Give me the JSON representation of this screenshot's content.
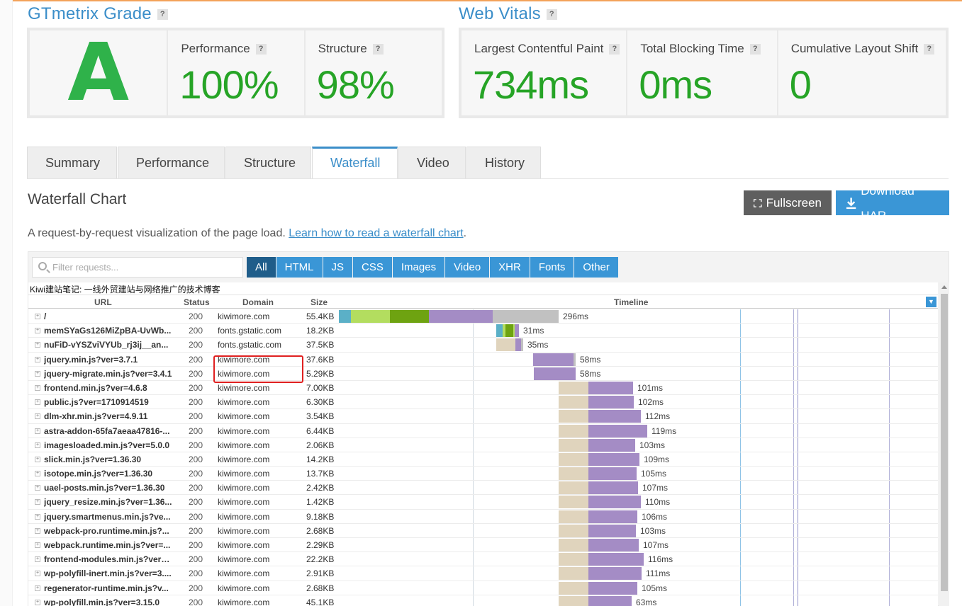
{
  "grade": {
    "title": "GTmetrix Grade",
    "help": "?",
    "letter": "A",
    "performance_label": "Performance",
    "performance_value": "100%",
    "structure_label": "Structure",
    "structure_value": "98%"
  },
  "vitals": {
    "title": "Web Vitals",
    "help": "?",
    "lcp_label": "Largest Contentful Paint",
    "lcp_value": "734ms",
    "tbt_label": "Total Blocking Time",
    "tbt_value": "0ms",
    "cls_label": "Cumulative Layout Shift",
    "cls_value": "0"
  },
  "tabs": [
    "Summary",
    "Performance",
    "Structure",
    "Waterfall",
    "Video",
    "History"
  ],
  "active_tab": "Waterfall",
  "waterfall": {
    "title": "Waterfall Chart",
    "fullscreen_label": "Fullscreen",
    "download_label": "Download HAR",
    "description": "A request-by-request visualization of the page load.",
    "learn_link": "Learn how to read a waterfall chart",
    "period": ".",
    "filter_placeholder": "Filter requests...",
    "filters": [
      "All",
      "HTML",
      "JS",
      "CSS",
      "Images",
      "Video",
      "XHR",
      "Fonts",
      "Other"
    ],
    "active_filter": "All",
    "site_title": "Kiwi建站笔记: 一线外贸建站与网络推广的技术博客",
    "columns": {
      "url": "URL",
      "status": "Status",
      "domain": "Domain",
      "size": "Size",
      "timeline": "Timeline"
    },
    "dropdown_icon": "chevron-down-icon"
  },
  "colors": {
    "accent": "#3b8ec9",
    "grade_green": "#2fb24a",
    "value_green": "#26a426",
    "blocking": "#e0d4bd",
    "waiting": "#a48cc5",
    "receiving": "#c1c1c1",
    "dns": "#5bb0c7",
    "connect": "#b3dd5f",
    "ssl": "#6ea311",
    "highlight": "#e02020"
  },
  "requests": [
    {
      "url": "/",
      "status": "200",
      "domain": "kiwimore.com",
      "size": "55.4KB",
      "time": "296ms"
    },
    {
      "url": "memSYaGs126MiZpBA-UvWb...",
      "status": "200",
      "domain": "fonts.gstatic.com",
      "size": "18.2KB",
      "time": "31ms"
    },
    {
      "url": "nuFiD-vYSZviVYUb_rj3ij__an...",
      "status": "200",
      "domain": "fonts.gstatic.com",
      "size": "37.5KB",
      "time": "35ms"
    },
    {
      "url": "jquery.min.js?ver=3.7.1",
      "status": "200",
      "domain": "kiwimore.com",
      "size": "37.6KB",
      "time": "58ms"
    },
    {
      "url": "jquery-migrate.min.js?ver=3.4.1",
      "status": "200",
      "domain": "kiwimore.com",
      "size": "5.29KB",
      "time": "58ms"
    },
    {
      "url": "frontend.min.js?ver=4.6.8",
      "status": "200",
      "domain": "kiwimore.com",
      "size": "7.00KB",
      "time": "101ms"
    },
    {
      "url": "public.js?ver=1710914519",
      "status": "200",
      "domain": "kiwimore.com",
      "size": "6.30KB",
      "time": "102ms"
    },
    {
      "url": "dlm-xhr.min.js?ver=4.9.11",
      "status": "200",
      "domain": "kiwimore.com",
      "size": "3.54KB",
      "time": "112ms"
    },
    {
      "url": "astra-addon-65fa7aeaa47816-...",
      "status": "200",
      "domain": "kiwimore.com",
      "size": "6.44KB",
      "time": "119ms"
    },
    {
      "url": "imagesloaded.min.js?ver=5.0.0",
      "status": "200",
      "domain": "kiwimore.com",
      "size": "2.06KB",
      "time": "103ms"
    },
    {
      "url": "slick.min.js?ver=1.36.30",
      "status": "200",
      "domain": "kiwimore.com",
      "size": "14.2KB",
      "time": "109ms"
    },
    {
      "url": "isotope.min.js?ver=1.36.30",
      "status": "200",
      "domain": "kiwimore.com",
      "size": "13.7KB",
      "time": "105ms"
    },
    {
      "url": "uael-posts.min.js?ver=1.36.30",
      "status": "200",
      "domain": "kiwimore.com",
      "size": "2.42KB",
      "time": "107ms"
    },
    {
      "url": "jquery_resize.min.js?ver=1.36...",
      "status": "200",
      "domain": "kiwimore.com",
      "size": "1.42KB",
      "time": "110ms"
    },
    {
      "url": "jquery.smartmenus.min.js?ve...",
      "status": "200",
      "domain": "kiwimore.com",
      "size": "9.18KB",
      "time": "106ms"
    },
    {
      "url": "webpack-pro.runtime.min.js?...",
      "status": "200",
      "domain": "kiwimore.com",
      "size": "2.68KB",
      "time": "103ms"
    },
    {
      "url": "webpack.runtime.min.js?ver=...",
      "status": "200",
      "domain": "kiwimore.com",
      "size": "2.29KB",
      "time": "107ms"
    },
    {
      "url": "frontend-modules.min.js?ver=...",
      "status": "200",
      "domain": "kiwimore.com",
      "size": "22.2KB",
      "time": "116ms"
    },
    {
      "url": "wp-polyfill-inert.min.js?ver=3....",
      "status": "200",
      "domain": "kiwimore.com",
      "size": "2.91KB",
      "time": "111ms"
    },
    {
      "url": "regenerator-runtime.min.js?v...",
      "status": "200",
      "domain": "kiwimore.com",
      "size": "2.68KB",
      "time": "105ms"
    },
    {
      "url": "wp-polyfill.min.js?ver=3.15.0",
      "status": "200",
      "domain": "kiwimore.com",
      "size": "45.1KB",
      "time": "63ms"
    }
  ]
}
